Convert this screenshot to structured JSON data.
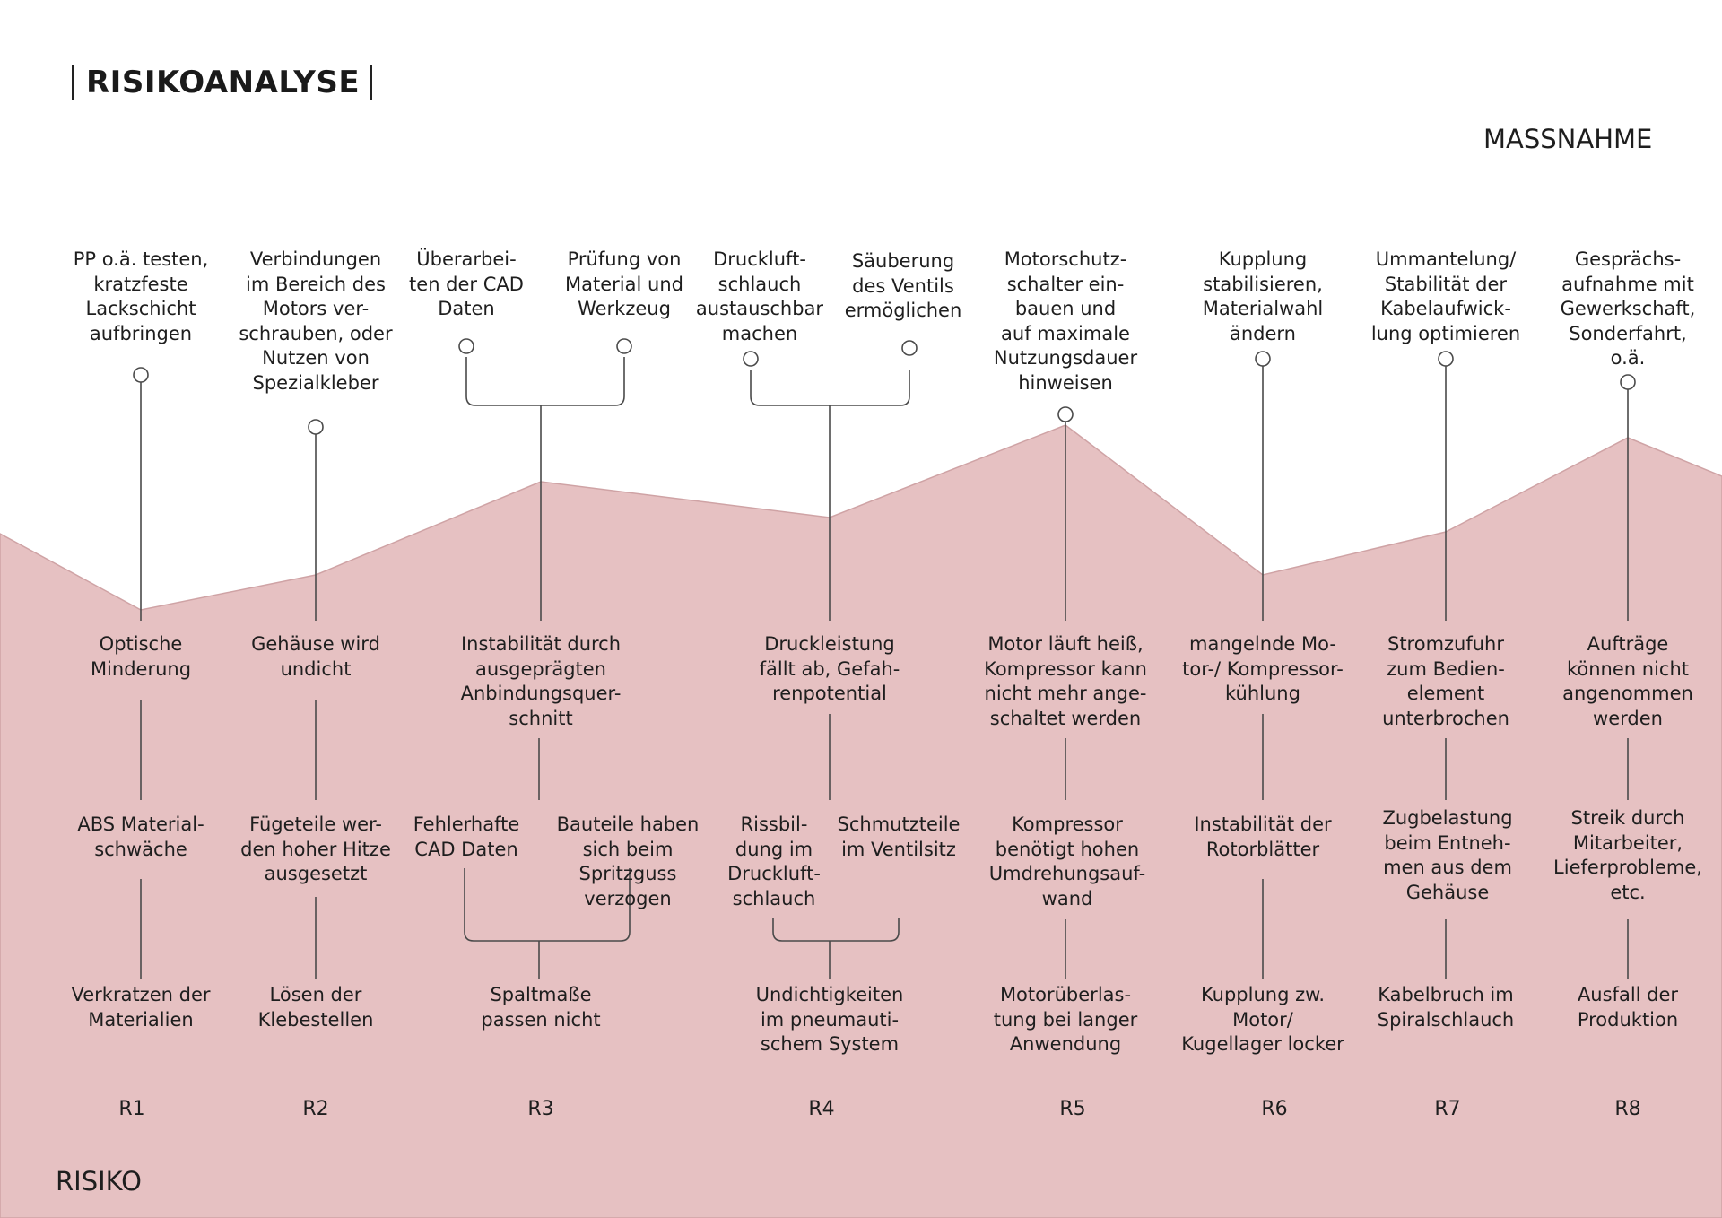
{
  "title": "RISIKOANALYSE",
  "top_label": "MASSNAHME",
  "bottom_label": "RISIKO",
  "colors": {
    "area_fill": "#e6c1c2",
    "area_edge": "#cfa3a5",
    "line": "#4a4a4a",
    "text": "#1e1e1e"
  },
  "columns": [
    {
      "id": "R1",
      "measures": [
        "PP o.ä. testen,\nkratzfeste\nLackschicht\naufbringen"
      ],
      "effect": "Optische\nMinderung",
      "causes": [
        "ABS Material-\nschwäche"
      ],
      "risk": "Verkratzen der\nMaterialien"
    },
    {
      "id": "R2",
      "measures": [
        "Verbindungen\nim Bereich des\nMotors ver-\nschrauben, oder\nNutzen von\nSpezialkleber"
      ],
      "effect": "Gehäuse wird\nundicht",
      "causes": [
        "Fügeteile wer-\nden hoher Hitze\nausgesetzt"
      ],
      "risk": "Lösen der\nKlebestellen"
    },
    {
      "id": "R3",
      "measures": [
        "Überarbei-\nten der CAD\nDaten",
        "Prüfung von\nMaterial und\nWerkzeug"
      ],
      "effect": "Instabilität durch\nausgeprägten\nAnbindungsquer-\nschnitt",
      "causes": [
        "Fehlerhafte\nCAD Daten",
        "Bauteile haben\nsich beim\nSpritzguss\nverzogen"
      ],
      "risk": "Spaltmaße\npassen nicht"
    },
    {
      "id": "R4",
      "measures": [
        "Druckluft-\nschlauch\naustauschbar\nmachen",
        "Säuberung\ndes Ventils\nermöglichen"
      ],
      "effect": "Druckleistung\nfällt ab, Gefah-\nrenpotential",
      "causes": [
        "Rissbil-\ndung im\nDruckluft-\nschlauch",
        "Schmutzteile\nim Ventilsitz"
      ],
      "risk": "Undichtigkeiten\nim pneumauti-\nschem System"
    },
    {
      "id": "R5",
      "measures": [
        "Motorschutz-\nschalter ein-\nbauen und\nauf maximale\nNutzungsdauer\nhinweisen"
      ],
      "effect": "Motor läuft heiß,\nKompressor kann\nnicht mehr ange-\nschaltet werden",
      "causes": [
        "Kompressor\nbenötigt hohen\nUmdrehungsauf-\nwand"
      ],
      "risk": "Motorüberlas-\ntung bei langer\nAnwendung"
    },
    {
      "id": "R6",
      "measures": [
        "Kupplung\nstabilisieren,\nMaterialwahl\nändern"
      ],
      "effect": "mangelnde Mo-\ntor-/ Kompressor-\nkühlung",
      "causes": [
        "Instabilität der\nRotorblätter"
      ],
      "risk": "Kupplung zw.\nMotor/\nKugellager locker"
    },
    {
      "id": "R7",
      "measures": [
        "Ummantelung/\nStabilität der\nKabelaufwick-\nlung optimieren"
      ],
      "effect": "Stromzufuhr\nzum Bedien-\nelement\nunterbrochen",
      "causes": [
        "Zugbelastung\nbeim Entneh-\nmen aus dem\nGehäuse"
      ],
      "risk": "Kabelbruch im\nSpiralschlauch"
    },
    {
      "id": "R8",
      "measures": [
        "Gesprächs-\naufnahme mit\nGewerkschaft,\nSonderfahrt,\no.ä."
      ],
      "effect": "Aufträge\nkönnen nicht\nangenommen\nwerden",
      "causes": [
        "Streik durch\nMitarbeiter,\nLieferprobleme,\netc."
      ],
      "risk": "Ausfall der\nProduktion"
    }
  ]
}
